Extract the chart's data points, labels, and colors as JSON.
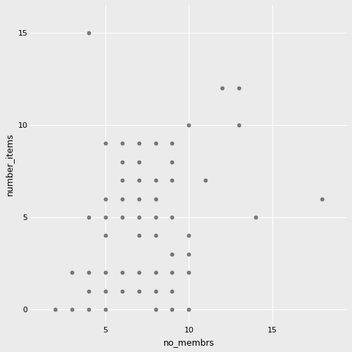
{
  "x": [
    2,
    3,
    3,
    4,
    4,
    4,
    4,
    4,
    5,
    5,
    5,
    5,
    5,
    5,
    5,
    6,
    6,
    6,
    6,
    6,
    6,
    6,
    7,
    7,
    7,
    7,
    7,
    7,
    7,
    7,
    8,
    8,
    8,
    8,
    8,
    8,
    8,
    8,
    9,
    9,
    9,
    9,
    9,
    9,
    9,
    9,
    10,
    10,
    10,
    10,
    10,
    11,
    12,
    13,
    13,
    14,
    18
  ],
  "y": [
    0,
    0,
    2,
    15,
    0,
    1,
    5,
    2,
    0,
    1,
    2,
    4,
    5,
    6,
    9,
    1,
    2,
    5,
    6,
    7,
    8,
    9,
    1,
    2,
    4,
    5,
    6,
    7,
    8,
    9,
    0,
    1,
    2,
    4,
    5,
    6,
    7,
    9,
    0,
    1,
    2,
    3,
    5,
    7,
    8,
    9,
    0,
    2,
    3,
    4,
    10,
    7,
    12,
    12,
    10,
    5,
    6
  ],
  "point_color": "#000000",
  "point_alpha": 0.5,
  "point_size": 18,
  "xlabel": "no_membrs",
  "ylabel": "number_items",
  "bg_color": "#EBEBEB",
  "grid_color": "#FFFFFF",
  "xlim": [
    0.5,
    19.5
  ],
  "ylim": [
    -0.8,
    16.5
  ],
  "xticks": [
    5,
    10,
    15
  ],
  "yticks": [
    0,
    5,
    10,
    15
  ],
  "figsize": [
    5.04,
    5.04
  ],
  "dpi": 100
}
